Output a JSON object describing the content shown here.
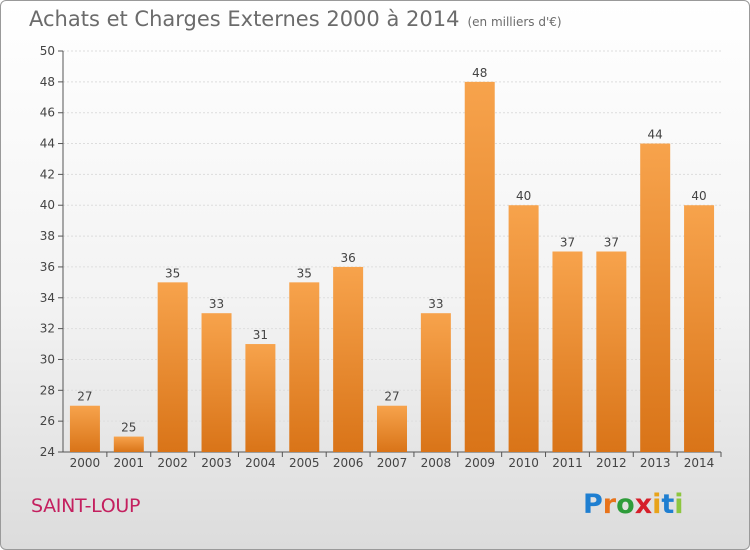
{
  "header": {
    "title": "Achats et Charges Externes 2000 à 2014",
    "unit": "(en milliers d'€)"
  },
  "location": "SAINT-LOUP",
  "logo": {
    "text": "Proxiti",
    "letters": [
      {
        "ch": "P",
        "color": "#1f7fd1"
      },
      {
        "ch": "r",
        "color": "#e8731a"
      },
      {
        "ch": "o",
        "color": "#2e9c3a"
      },
      {
        "ch": "x",
        "color": "#d61f2a"
      },
      {
        "ch": "i",
        "color": "#e8a31a"
      },
      {
        "ch": "t",
        "color": "#1f7fd1"
      },
      {
        "ch": "i",
        "color": "#8dc63f"
      }
    ]
  },
  "colors": {
    "bar_light": "#f7a34c",
    "bar_dark": "#d97418",
    "axis": "#555555",
    "grid": "#dddddd",
    "label": "#444444"
  },
  "chart_data": {
    "type": "bar",
    "title": "Achats et Charges Externes 2000 à 2014",
    "categories": [
      "2000",
      "2001",
      "2002",
      "2003",
      "2004",
      "2005",
      "2006",
      "2007",
      "2008",
      "2009",
      "2010",
      "2011",
      "2012",
      "2013",
      "2014"
    ],
    "values": [
      27,
      25,
      35,
      33,
      31,
      35,
      36,
      27,
      33,
      48,
      40,
      37,
      37,
      44,
      40
    ],
    "ylim": [
      24,
      50
    ],
    "yticks": [
      24,
      26,
      28,
      30,
      32,
      34,
      36,
      38,
      40,
      42,
      44,
      46,
      48,
      50
    ],
    "grid": true,
    "data_labels": true
  }
}
